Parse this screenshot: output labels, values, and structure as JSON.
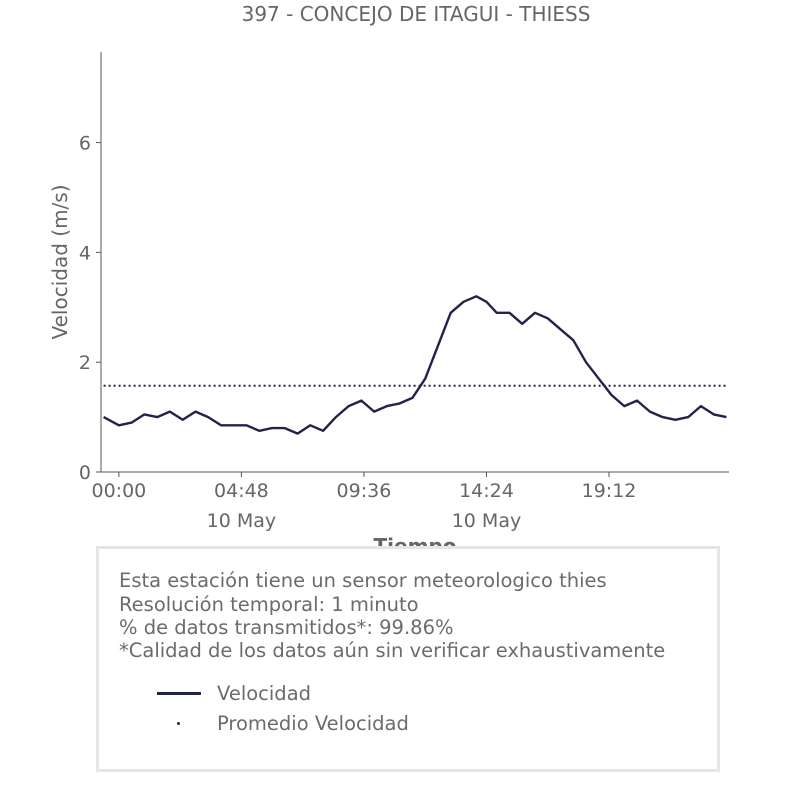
{
  "chart_data": {
    "type": "line",
    "title": "397 - CONCEJO DE ITAGUI - THIESS",
    "xlabel": "Tiempo",
    "ylabel": "Velocidad (m/s)",
    "xlim": [
      -0.7,
      23.9
    ],
    "ylim": [
      0,
      7.65
    ],
    "x_ticks": [
      {
        "hour": 0.0,
        "label": "00:00",
        "sublabel": ""
      },
      {
        "hour": 4.8,
        "label": "04:48",
        "sublabel": "10 May"
      },
      {
        "hour": 9.6,
        "label": "09:36",
        "sublabel": ""
      },
      {
        "hour": 14.4,
        "label": "14:24",
        "sublabel": "10 May"
      },
      {
        "hour": 19.2,
        "label": "19:12",
        "sublabel": ""
      }
    ],
    "y_ticks": [
      0,
      2,
      4,
      6
    ],
    "series": [
      {
        "name": "Velocidad",
        "style": "solid",
        "color": "#22234a",
        "x": [
          -0.6,
          0,
          0.5,
          1,
          1.5,
          2,
          2.5,
          3,
          3.5,
          4,
          4.5,
          5,
          5.5,
          6,
          6.5,
          7,
          7.5,
          8,
          8.5,
          9,
          9.5,
          10,
          10.5,
          11,
          11.5,
          12,
          12.5,
          13,
          13.5,
          14,
          14.4,
          14.8,
          15.3,
          15.8,
          16.3,
          16.8,
          17.3,
          17.8,
          18.3,
          18.8,
          19.3,
          19.8,
          20.3,
          20.8,
          21.3,
          21.8,
          22.3,
          22.8,
          23.3,
          23.8
        ],
        "y": [
          1.0,
          0.85,
          0.9,
          1.05,
          1.0,
          1.1,
          0.95,
          1.1,
          1.0,
          0.85,
          0.85,
          0.85,
          0.75,
          0.8,
          0.8,
          0.7,
          0.85,
          0.75,
          1.0,
          1.2,
          1.3,
          1.1,
          1.2,
          1.25,
          1.35,
          1.7,
          2.3,
          2.9,
          3.1,
          3.2,
          3.1,
          2.9,
          2.9,
          2.7,
          2.9,
          2.8,
          2.6,
          2.4,
          2.0,
          1.7,
          1.4,
          1.2,
          1.3,
          1.1,
          1.0,
          0.95,
          1.0,
          1.2,
          1.05,
          1.0
        ]
      },
      {
        "name": "Promedio Velocidad",
        "style": "dotted",
        "color": "#22234a",
        "x": [
          -0.6,
          23.8
        ],
        "y": [
          1.57,
          1.57
        ]
      }
    ],
    "grid": false,
    "legend": "bottom-left, inside info box"
  },
  "info": {
    "line1": "Esta estación tiene un sensor meteorologico thies",
    "line2": "Resolución temporal: 1 minuto",
    "line3": "% de datos transmitidos*: 99.86%",
    "line4": "*Calidad de los datos aún sin verificar exhaustivamente"
  },
  "legend": {
    "items": [
      {
        "label": "Velocidad"
      },
      {
        "label": "Promedio Velocidad"
      }
    ]
  },
  "colors": {
    "series": "#22234a",
    "text": "#666666",
    "axis": "#666666",
    "box_border": "#e6e6e6"
  }
}
